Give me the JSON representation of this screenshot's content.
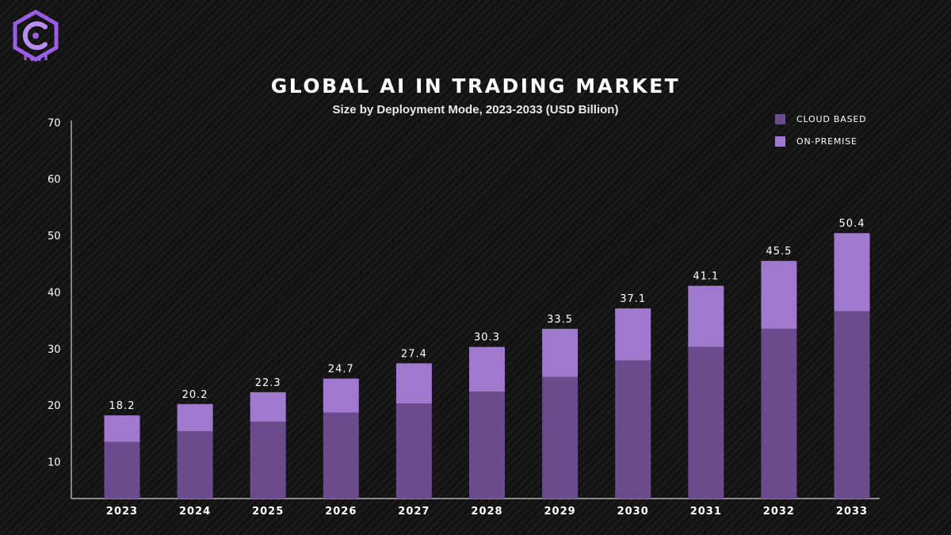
{
  "colors": {
    "cloud_based": "#6a4b8c",
    "on_premise": "#a079cf",
    "axis": "#cfcfcf",
    "text": "#ffffff",
    "logo": "#9b5de5"
  },
  "logo": {
    "icon": "circuit-c-logo"
  },
  "chart_data": {
    "type": "bar",
    "stacked": true,
    "title": "GLOBAL AI IN TRADING MARKET",
    "subtitle": "Size by Deployment Mode, 2023-2033 (USD Billion)",
    "categories": [
      "2023",
      "2024",
      "2025",
      "2026",
      "2027",
      "2028",
      "2029",
      "2030",
      "2031",
      "2032",
      "2033"
    ],
    "series": [
      {
        "name": "CLOUD BASED",
        "values": [
          13.5,
          15.4,
          17.1,
          18.7,
          20.3,
          22.4,
          25.0,
          27.9,
          30.3,
          33.5,
          36.6
        ]
      },
      {
        "name": "ON-PREMISE",
        "values": [
          4.7,
          4.8,
          5.2,
          6.0,
          7.1,
          7.9,
          8.5,
          9.2,
          10.8,
          12.0,
          13.8
        ]
      }
    ],
    "totals": [
      "18.2",
      "20.2",
      "22.3",
      "24.7",
      "27.4",
      "30.3",
      "33.5",
      "37.1",
      "41.1",
      "45.5",
      "50.4"
    ],
    "yticks": [
      10,
      20,
      30,
      40,
      50,
      60,
      70
    ],
    "ylim": [
      3.5,
      72
    ],
    "grid": false,
    "legend_position": "top-right",
    "xlabel": "",
    "ylabel": ""
  }
}
